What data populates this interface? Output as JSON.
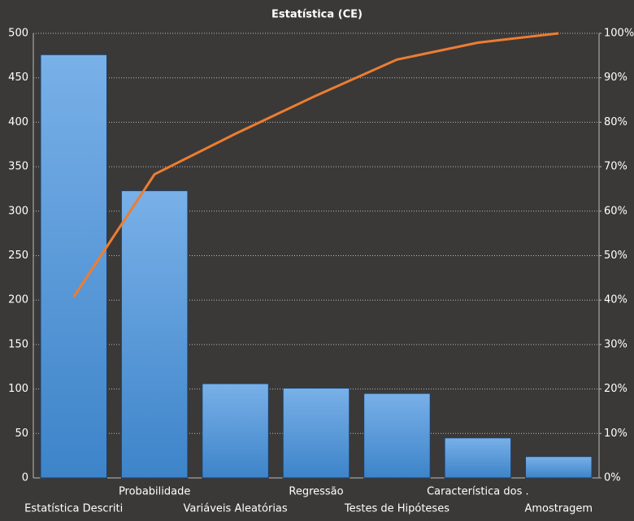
{
  "chart_data": {
    "type": "pareto",
    "title": "Estatística  (CE)",
    "categories": [
      "Estatística Descriti",
      "Probabilidade",
      "Variáveis Aleatórias",
      "Regressão",
      "Testes de Hipóteses",
      "Característica dos .",
      "Amostragem"
    ],
    "series": [
      {
        "type": "bar",
        "color": "#4a90d9",
        "values": [
          476,
          323,
          106,
          101,
          95,
          45,
          24
        ]
      },
      {
        "type": "line",
        "color": "#ed7d31",
        "axis": "y2",
        "values": [
          40.7,
          68.3,
          77.4,
          86.0,
          94.1,
          97.9,
          100
        ]
      }
    ],
    "ylim": [
      0,
      500
    ],
    "yticks": [
      0,
      50,
      100,
      150,
      200,
      250,
      300,
      350,
      400,
      450,
      500
    ],
    "y2lim": [
      0,
      100
    ],
    "y2ticks": [
      {
        "value": 0,
        "label": "0%"
      },
      {
        "value": 10,
        "label": "10%"
      },
      {
        "value": 20,
        "label": "20%"
      },
      {
        "value": 30,
        "label": "30%"
      },
      {
        "value": 40,
        "label": "40%"
      },
      {
        "value": 50,
        "label": "50%"
      },
      {
        "value": 60,
        "label": "60%"
      },
      {
        "value": 70,
        "label": "70%"
      },
      {
        "value": 80,
        "label": "80%"
      },
      {
        "value": 90,
        "label": "90%"
      },
      {
        "value": 100,
        "label": "100%"
      }
    ],
    "grid": true
  }
}
